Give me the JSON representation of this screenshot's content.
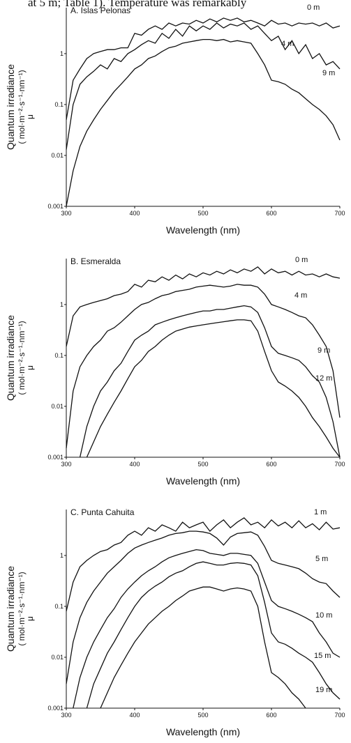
{
  "page_text": "at 5 m; Table 1). Temperature was remarkably",
  "chart_data": [
    {
      "type": "line",
      "title": "A. Islas Pelonas",
      "xlabel": "Wavelength (nm)",
      "ylabel": [
        "Quantum irradiance",
        "( mol·m⁻²·s⁻¹·nm⁻¹)",
        "μ"
      ],
      "yscale": "log",
      "xlim": [
        300,
        700
      ],
      "xticks": [
        300,
        400,
        500,
        600,
        700
      ],
      "ylim": [
        0.001,
        8
      ],
      "yticks": [
        0.001,
        0.01,
        0.1,
        1
      ],
      "x": [
        300,
        310,
        320,
        330,
        340,
        350,
        360,
        370,
        380,
        390,
        400,
        410,
        420,
        430,
        440,
        450,
        460,
        470,
        480,
        490,
        500,
        510,
        520,
        530,
        540,
        550,
        560,
        570,
        580,
        590,
        600,
        610,
        620,
        630,
        640,
        650,
        660,
        670,
        680,
        690,
        700
      ],
      "series": [
        {
          "name": "0 m",
          "color": "#111111",
          "values": [
            0.05,
            0.3,
            0.5,
            0.8,
            1.0,
            1.1,
            1.2,
            1.2,
            1.3,
            1.3,
            2.5,
            2.3,
            3,
            3.5,
            3,
            4,
            3.5,
            4,
            3.8,
            4.5,
            4,
            4.8,
            4.2,
            5,
            4.5,
            5,
            4.2,
            4.5,
            4,
            3.5,
            4.5,
            3.8,
            4,
            3.5,
            4,
            3.8,
            4,
            3.5,
            4,
            3.2,
            3.5
          ]
        },
        {
          "name": "4 m",
          "color": "#111111",
          "values": [
            0.013,
            0.1,
            0.25,
            0.35,
            0.45,
            0.6,
            0.5,
            0.8,
            0.7,
            1.0,
            1.2,
            1.5,
            1.8,
            1.6,
            2.5,
            2.0,
            3,
            2.2,
            3.5,
            2.8,
            3.5,
            3,
            4,
            3.2,
            3.8,
            3.5,
            4,
            3,
            3.5,
            2.5,
            1.8,
            2.2,
            1.2,
            1.8,
            1.0,
            1.5,
            0.8,
            1.0,
            0.6,
            0.7,
            0.5
          ]
        },
        {
          "name": "9 m",
          "color": "#111111",
          "values": [
            0.001,
            0.005,
            0.015,
            0.03,
            0.05,
            0.08,
            0.12,
            0.18,
            0.25,
            0.35,
            0.5,
            0.6,
            0.8,
            0.9,
            1.1,
            1.3,
            1.4,
            1.6,
            1.7,
            1.8,
            1.9,
            1.9,
            1.8,
            1.9,
            1.7,
            1.8,
            1.7,
            1.6,
            1.0,
            0.6,
            0.3,
            0.28,
            0.25,
            0.2,
            0.17,
            0.13,
            0.1,
            0.08,
            0.06,
            0.04,
            0.02
          ]
        }
      ]
    },
    {
      "type": "line",
      "title": "B. Esmeralda",
      "xlabel": "Wavelength (nm)",
      "ylabel": [
        "Quantum irradiance",
        "( mol·m⁻²·s⁻¹·nm⁻¹)",
        "μ"
      ],
      "yscale": "log",
      "xlim": [
        300,
        700
      ],
      "xticks": [
        300,
        400,
        500,
        600,
        700
      ],
      "ylim": [
        0.001,
        8
      ],
      "yticks": [
        0.001,
        0.01,
        0.1,
        1
      ],
      "x": [
        300,
        310,
        320,
        330,
        340,
        350,
        360,
        370,
        380,
        390,
        400,
        410,
        420,
        430,
        440,
        450,
        460,
        470,
        480,
        490,
        500,
        510,
        520,
        530,
        540,
        550,
        560,
        570,
        580,
        590,
        600,
        610,
        620,
        630,
        640,
        650,
        660,
        670,
        680,
        690,
        700
      ],
      "series": [
        {
          "name": "0 m",
          "color": "#111111",
          "values": [
            0.15,
            0.6,
            0.9,
            1.0,
            1.1,
            1.2,
            1.3,
            1.5,
            1.6,
            1.8,
            2.5,
            2.2,
            3,
            2.8,
            3.5,
            3,
            3.8,
            3.2,
            4,
            3.5,
            4.2,
            3.8,
            4.5,
            4,
            4.8,
            4.2,
            5,
            4.5,
            5.5,
            4,
            5,
            4.2,
            4.5,
            3.8,
            4.5,
            3.8,
            4,
            3.5,
            4,
            3.5,
            3.3
          ]
        },
        {
          "name": "4 m",
          "color": "#111111",
          "values": [
            0.0015,
            0.02,
            0.06,
            0.1,
            0.15,
            0.2,
            0.3,
            0.35,
            0.45,
            0.6,
            0.8,
            1.0,
            1.1,
            1.3,
            1.5,
            1.6,
            1.8,
            1.9,
            2.0,
            2.2,
            2.3,
            2.4,
            2.3,
            2.2,
            2.3,
            2.5,
            2.4,
            2.4,
            2.2,
            1.6,
            1.0,
            0.9,
            0.8,
            0.7,
            0.6,
            0.55,
            0.4,
            0.25,
            0.15,
            0.05,
            0.006
          ]
        },
        {
          "name": "9 m",
          "color": "#111111",
          "values": [
            null,
            null,
            0.001,
            0.004,
            0.01,
            0.02,
            0.03,
            0.05,
            0.07,
            0.12,
            0.2,
            0.25,
            0.3,
            0.4,
            0.45,
            0.5,
            0.55,
            0.6,
            0.65,
            0.7,
            0.75,
            0.75,
            0.8,
            0.8,
            0.85,
            0.9,
            0.95,
            0.9,
            0.7,
            0.35,
            0.15,
            0.11,
            0.1,
            0.09,
            0.08,
            0.06,
            0.04,
            0.03,
            0.015,
            0.005,
            0.001
          ]
        },
        {
          "name": "12 m",
          "color": "#111111",
          "values": [
            null,
            null,
            null,
            0.001,
            0.002,
            0.004,
            0.007,
            0.012,
            0.02,
            0.035,
            0.06,
            0.08,
            0.12,
            0.15,
            0.2,
            0.25,
            0.3,
            0.33,
            0.36,
            0.38,
            0.4,
            0.42,
            0.44,
            0.46,
            0.48,
            0.5,
            0.5,
            0.48,
            0.3,
            0.12,
            0.05,
            0.03,
            0.025,
            0.02,
            0.015,
            0.01,
            0.006,
            0.004,
            0.0025,
            0.0015,
            0.001
          ]
        }
      ]
    },
    {
      "type": "line",
      "title": "C. Punta Cahuita",
      "xlabel": "Wavelength (nm)",
      "ylabel": [
        "Quantum irradiance",
        "( mol·m⁻²·s⁻¹·nm⁻¹)",
        "μ"
      ],
      "yscale": "log",
      "xlim": [
        300,
        700
      ],
      "xticks": [
        300,
        400,
        500,
        600,
        700
      ],
      "ylim": [
        0.001,
        8
      ],
      "yticks": [
        0.001,
        0.01,
        0.1,
        1
      ],
      "x": [
        300,
        310,
        320,
        330,
        340,
        350,
        360,
        370,
        380,
        390,
        400,
        410,
        420,
        430,
        440,
        450,
        460,
        470,
        480,
        490,
        500,
        510,
        520,
        530,
        540,
        550,
        560,
        570,
        580,
        590,
        600,
        610,
        620,
        630,
        640,
        650,
        660,
        670,
        680,
        690,
        700
      ],
      "series": [
        {
          "name": "1 m",
          "color": "#111111",
          "values": [
            0.08,
            0.3,
            0.6,
            0.8,
            1.0,
            1.2,
            1.3,
            1.6,
            1.8,
            2.5,
            3,
            2.5,
            3.5,
            3,
            4,
            3.5,
            3,
            4.5,
            3.5,
            4,
            4.5,
            3,
            4,
            5,
            3.5,
            4.5,
            5.5,
            4,
            4.5,
            3.5,
            5,
            3.8,
            4.5,
            3.5,
            4.8,
            3.5,
            4.2,
            3.2,
            4.5,
            3.3,
            3.5
          ]
        },
        {
          "name": "5 m",
          "color": "#111111",
          "values": [
            0.003,
            0.02,
            0.06,
            0.12,
            0.2,
            0.3,
            0.45,
            0.6,
            0.8,
            1.1,
            1.4,
            1.6,
            1.8,
            2.0,
            2.2,
            2.5,
            2.7,
            2.8,
            3.0,
            3.0,
            2.9,
            2.7,
            2.2,
            1.6,
            2.3,
            2.7,
            2.8,
            2.9,
            2.5,
            1.5,
            0.8,
            0.7,
            0.65,
            0.6,
            0.55,
            0.45,
            0.35,
            0.3,
            0.28,
            0.2,
            0.15
          ]
        },
        {
          "name": "10 m",
          "color": "#111111",
          "values": [
            null,
            0.001,
            0.004,
            0.01,
            0.02,
            0.035,
            0.06,
            0.09,
            0.15,
            0.22,
            0.3,
            0.4,
            0.5,
            0.6,
            0.75,
            0.9,
            1.0,
            1.1,
            1.2,
            1.3,
            1.25,
            1.1,
            1.05,
            1.0,
            1.1,
            1.1,
            1.05,
            1.0,
            0.7,
            0.3,
            0.13,
            0.1,
            0.09,
            0.08,
            0.07,
            0.06,
            0.05,
            0.03,
            0.02,
            0.012,
            0.01
          ]
        },
        {
          "name": "15 m",
          "color": "#111111",
          "values": [
            null,
            null,
            null,
            0.001,
            0.003,
            0.006,
            0.012,
            0.02,
            0.035,
            0.06,
            0.1,
            0.15,
            0.2,
            0.25,
            0.3,
            0.38,
            0.45,
            0.5,
            0.6,
            0.7,
            0.75,
            0.7,
            0.65,
            0.65,
            0.7,
            0.72,
            0.7,
            0.65,
            0.4,
            0.12,
            0.03,
            0.02,
            0.018,
            0.015,
            0.012,
            0.01,
            0.008,
            0.005,
            0.003,
            0.002,
            0.0015
          ]
        },
        {
          "name": "19 m",
          "color": "#111111",
          "values": [
            null,
            null,
            null,
            null,
            null,
            0.001,
            0.002,
            0.004,
            0.007,
            0.012,
            0.02,
            0.03,
            0.045,
            0.06,
            0.08,
            0.1,
            0.13,
            0.16,
            0.2,
            0.22,
            0.24,
            0.24,
            0.22,
            0.2,
            0.22,
            0.23,
            0.22,
            0.2,
            0.1,
            0.02,
            0.005,
            0.004,
            0.003,
            0.002,
            0.0015,
            0.001,
            null,
            null,
            null,
            null,
            null
          ]
        }
      ]
    }
  ]
}
